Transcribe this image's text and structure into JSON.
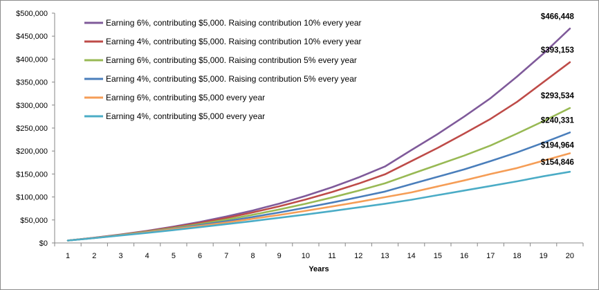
{
  "chart_data": {
    "type": "line",
    "xlabel": "Years",
    "ylabel": "",
    "ylim": [
      0,
      500000
    ],
    "yticks": [
      "$0",
      "$50,000",
      "$100,000",
      "$150,000",
      "$200,000",
      "$250,000",
      "$300,000",
      "$350,000",
      "$400,000",
      "$450,000",
      "$500,000"
    ],
    "x": [
      1,
      2,
      3,
      4,
      5,
      6,
      7,
      8,
      9,
      10,
      11,
      12,
      13,
      14,
      15,
      16,
      17,
      18,
      19,
      20
    ],
    "grid": false,
    "legend": "top-left",
    "series": [
      {
        "name": "Earning 6%, contributing $5,000. Raising contribution 10% every year",
        "color": "#7f5a9a",
        "end_label": "$466,448",
        "values": [
          5300,
          11400,
          18400,
          26400,
          35500,
          45800,
          57500,
          70700,
          85600,
          102400,
          121300,
          142500,
          166300,
          202000,
          237000,
          275000,
          315000,
          362000,
          412000,
          466448
        ]
      },
      {
        "name": "Earning 4%, contributing $5,000. Raising contribution 10% every year",
        "color": "#be4b48",
        "end_label": "$393,153",
        "values": [
          5200,
          11100,
          17800,
          25400,
          34000,
          43600,
          54400,
          66400,
          79700,
          94500,
          110900,
          129100,
          149200,
          178000,
          207000,
          238000,
          270000,
          307000,
          350000,
          393153
        ]
      },
      {
        "name": "Earning 6%, contributing $5,000. Raising contribution 5% every year",
        "color": "#98b954",
        "end_label": "$293,534",
        "values": [
          5300,
          10900,
          17400,
          24500,
          32400,
          41200,
          50800,
          61300,
          72800,
          85300,
          98900,
          113700,
          129600,
          150000,
          170000,
          190000,
          212000,
          238000,
          265000,
          293534
        ]
      },
      {
        "name": "Earning 4%, contributing $5,000. Raising contribution 5% every year",
        "color": "#4a7ebb",
        "end_label": "$240,331",
        "values": [
          5200,
          10800,
          16900,
          23600,
          30900,
          38800,
          47300,
          56500,
          66300,
          76800,
          87800,
          99500,
          111800,
          128000,
          144000,
          160000,
          178000,
          197000,
          218000,
          240331
        ]
      },
      {
        "name": "Earning 6%, contributing $5,000 every year",
        "color": "#f59d56",
        "end_label": "$194,964",
        "values": [
          5300,
          10900,
          16900,
          23200,
          29900,
          37000,
          44500,
          52500,
          60900,
          69900,
          79300,
          89100,
          99500,
          110000,
          123000,
          136000,
          150000,
          163000,
          179000,
          194964
        ]
      },
      {
        "name": "Earning 4%, contributing $5,000 every year",
        "color": "#4bacc6",
        "end_label": "$154,846",
        "values": [
          5200,
          10600,
          16200,
          22000,
          28000,
          34300,
          40900,
          47600,
          54600,
          61900,
          69400,
          77200,
          85200,
          94000,
          104000,
          114000,
          124000,
          134000,
          145000,
          154846
        ]
      }
    ]
  }
}
